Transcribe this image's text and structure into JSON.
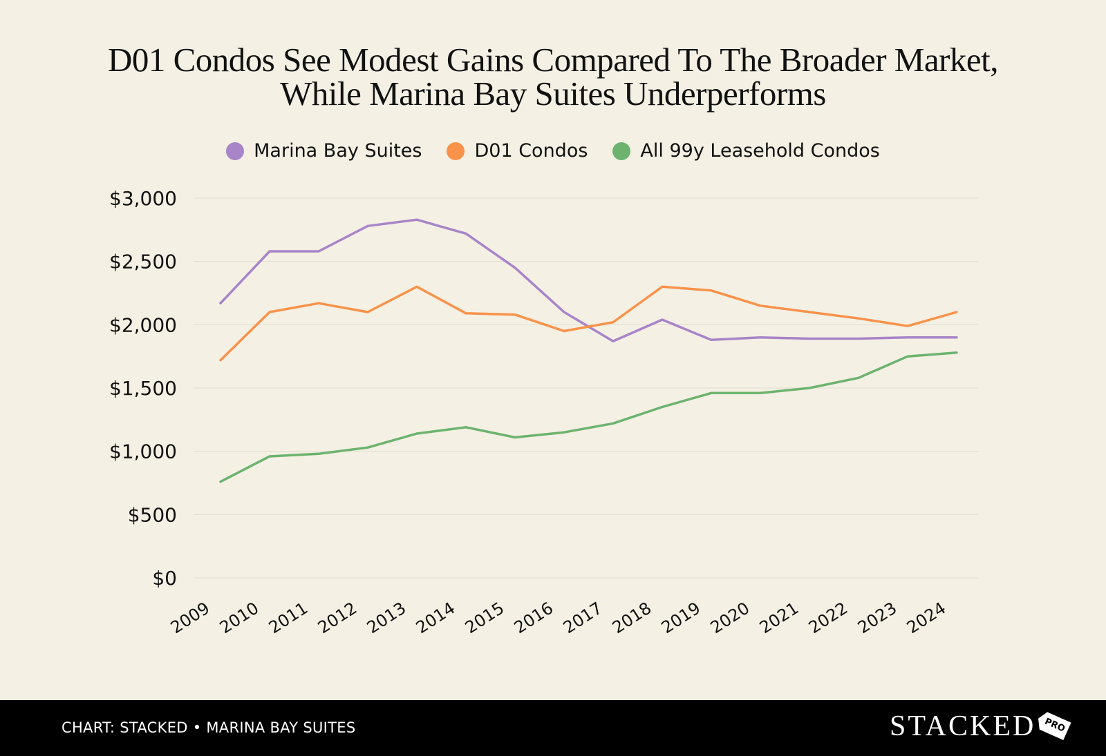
{
  "title": {
    "line1": "D01 Condos See Modest Gains Compared To The Broader Market,",
    "line2": "While Marina Bay Suites Underperforms"
  },
  "footer": {
    "credit": "CHART: STACKED • MARINA BAY SUITES",
    "brand": "STACKED",
    "brand_tag": "PRO"
  },
  "chart_data": {
    "type": "line",
    "title": "D01 Condos See Modest Gains Compared To The Broader Market, While Marina Bay Suites Underperforms",
    "xlabel": "",
    "ylabel": "",
    "x": [
      "2009",
      "2010",
      "2011",
      "2012",
      "2013",
      "2014",
      "2015",
      "2016",
      "2017",
      "2018",
      "2019",
      "2020",
      "2021",
      "2022",
      "2023",
      "2024"
    ],
    "ylim": [
      0,
      3000
    ],
    "yticks": [
      0,
      500,
      1000,
      1500,
      2000,
      2500,
      3000
    ],
    "ytick_labels": [
      "$0",
      "$500",
      "$1,000",
      "$1,500",
      "$2,000",
      "$2,500",
      "$3,000"
    ],
    "grid": "horizontal",
    "legend_position": "top-center",
    "series": [
      {
        "name": "Marina Bay Suites",
        "color": "#a884c8",
        "values": [
          2170,
          2580,
          2580,
          2780,
          2830,
          2720,
          2450,
          2100,
          1870,
          2040,
          1880,
          1900,
          1890,
          1890,
          1900,
          1900
        ]
      },
      {
        "name": "D01 Condos",
        "color": "#f9924a",
        "values": [
          1720,
          2100,
          2170,
          2100,
          2300,
          2090,
          2080,
          1950,
          2020,
          2300,
          2270,
          2150,
          2100,
          2050,
          1990,
          2100
        ]
      },
      {
        "name": "All 99y Leasehold Condos",
        "color": "#6cb36f",
        "values": [
          760,
          960,
          980,
          1030,
          1140,
          1190,
          1110,
          1150,
          1220,
          1350,
          1460,
          1460,
          1500,
          1580,
          1750,
          1780
        ]
      }
    ]
  }
}
